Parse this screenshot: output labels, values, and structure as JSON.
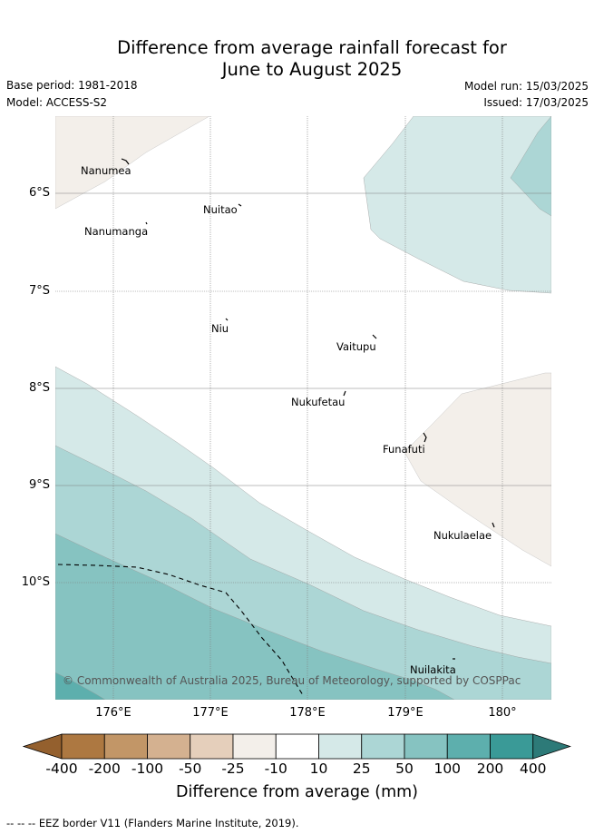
{
  "header": {
    "title_line1": "Difference from average rainfall forecast for",
    "title_line2": "June to August 2025",
    "base_period": "Base period: 1981-2018",
    "model": "Model: ACCESS-S2",
    "model_run": "Model run: 15/03/2025",
    "issued": "Issued: 17/03/2025"
  },
  "map": {
    "lat_labels": [
      "6°S",
      "7°S",
      "8°S",
      "9°S",
      "10°S"
    ],
    "lon_labels": [
      "176°E",
      "177°E",
      "178°E",
      "179°E",
      "180°"
    ],
    "places": {
      "nanumea": "Nanumea",
      "nuitao": "Nuitao",
      "nanumanga": "Nanumanga",
      "niu": "Niu",
      "vaitupu": "Vaitupu",
      "nukufetau": "Nukufetau",
      "funafuti": "Funafuti",
      "nukulaelae": "Nukulaelae",
      "nuilakita": "Nuilakita"
    },
    "copyright": "© Commonwealth of Australia 2025, Bureau of Meteorology, supported by COSPPac",
    "colors": {
      "dry_light": "#f3efea",
      "wet_1": "#d5e9e8",
      "wet_2": "#acd6d5",
      "wet_3": "#86c3c1",
      "wet_4": "#5dafad"
    }
  },
  "colorbar": {
    "labels": [
      "-400",
      "-200",
      "-100",
      "-50",
      "-25",
      "-10",
      "10",
      "25",
      "50",
      "100",
      "200",
      "400"
    ],
    "colors": [
      "#ad7841",
      "#c29667",
      "#d4b190",
      "#e5cfbb",
      "#f3efea",
      "#ffffff",
      "#d5e9e8",
      "#acd6d5",
      "#86c3c1",
      "#5dafad",
      "#3a9a97"
    ],
    "low_extend_color": "#94602e",
    "high_extend_color": "#2d7a78",
    "axis_label": "Difference from average (mm)"
  },
  "footer": {
    "eez_legend": "-- -- -- EEZ border V11 (Flanders Marine Institute, 2019)."
  }
}
